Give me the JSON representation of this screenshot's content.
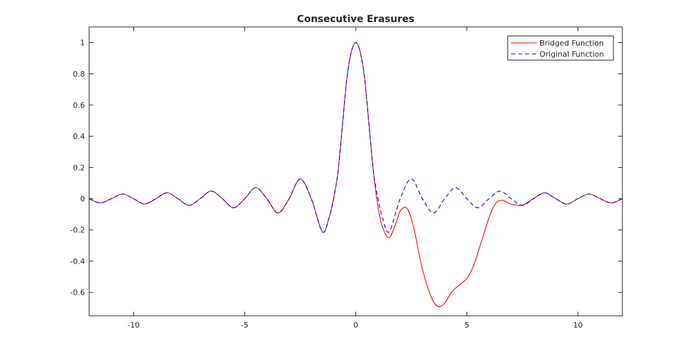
{
  "chart_data": {
    "type": "line",
    "title": "Consecutive Erasures",
    "xlabel": "",
    "ylabel": "",
    "xlim": [
      -12,
      12
    ],
    "ylim": [
      -0.75,
      1.1
    ],
    "x_ticks": [
      -10,
      -5,
      0,
      5,
      10
    ],
    "x_tick_labels": [
      "-10",
      "-5",
      "0",
      "5",
      "10"
    ],
    "y_ticks": [
      -0.6,
      -0.4,
      -0.2,
      0,
      0.2,
      0.4,
      0.6,
      0.8,
      1
    ],
    "y_tick_labels": [
      "-0.6",
      "-0.4",
      "-0.2",
      "0",
      "0.2",
      "0.4",
      "0.6",
      "0.8",
      "1"
    ],
    "grid": false,
    "legend_position": "top-right",
    "series": [
      {
        "name": "Bridged Function",
        "color": "#ff0000",
        "style": "solid",
        "x": [
          -12,
          -11.5,
          -11,
          -10.5,
          -10,
          -9.5,
          -9,
          -8.5,
          -8,
          -7.5,
          -7,
          -6.5,
          -6,
          -5.5,
          -5,
          -4.5,
          -4,
          -3.5,
          -3,
          -2.5,
          -2,
          -1.5,
          -1.2,
          -1,
          -0.8,
          -0.6,
          -0.4,
          -0.2,
          0,
          0.2,
          0.4,
          0.6,
          0.8,
          1,
          1.2,
          1.5,
          1.8,
          2,
          2.3,
          2.6,
          3,
          3.4,
          3.7,
          4,
          4.3,
          4.6,
          5,
          5.3,
          5.6,
          6,
          6.3,
          6.6,
          7,
          7.5,
          8,
          8.5,
          9,
          9.5,
          10,
          10.5,
          11,
          11.5,
          12
        ],
        "y": [
          0,
          -0.027,
          0,
          0.03,
          0,
          -0.034,
          0,
          0.038,
          0,
          -0.042,
          0,
          0.049,
          0,
          -0.058,
          0,
          0.071,
          0,
          -0.091,
          0,
          0.127,
          0,
          -0.212,
          -0.12,
          0,
          0.17,
          0.47,
          0.77,
          0.94,
          1.0,
          0.94,
          0.77,
          0.47,
          0.17,
          -0.05,
          -0.18,
          -0.25,
          -0.16,
          -0.08,
          -0.06,
          -0.18,
          -0.45,
          -0.63,
          -0.69,
          -0.67,
          -0.6,
          -0.56,
          -0.51,
          -0.43,
          -0.3,
          -0.12,
          -0.03,
          -0.01,
          -0.035,
          -0.04,
          0,
          0.038,
          0,
          -0.034,
          0,
          0.03,
          0,
          -0.027,
          0
        ]
      },
      {
        "name": "Original Function",
        "color": "#0000ff",
        "style": "dashed",
        "x": [
          -12,
          -11.5,
          -11,
          -10.5,
          -10,
          -9.5,
          -9,
          -8.5,
          -8,
          -7.5,
          -7,
          -6.5,
          -6,
          -5.5,
          -5,
          -4.5,
          -4,
          -3.5,
          -3,
          -2.5,
          -2,
          -1.5,
          -1.2,
          -1,
          -0.8,
          -0.6,
          -0.4,
          -0.2,
          0,
          0.2,
          0.4,
          0.6,
          0.8,
          1,
          1.2,
          1.5,
          2,
          2.5,
          3,
          3.5,
          4,
          4.5,
          5,
          5.5,
          6,
          6.5,
          7,
          7.5,
          8,
          8.5,
          9,
          9.5,
          10,
          10.5,
          11,
          11.5,
          12
        ],
        "y": [
          0,
          -0.027,
          0,
          0.03,
          0,
          -0.034,
          0,
          0.038,
          0,
          -0.042,
          0,
          0.049,
          0,
          -0.058,
          0,
          0.071,
          0,
          -0.091,
          0,
          0.127,
          0,
          -0.212,
          -0.12,
          0,
          0.17,
          0.47,
          0.77,
          0.94,
          1.0,
          0.94,
          0.77,
          0.47,
          0.17,
          0,
          -0.12,
          -0.212,
          0,
          0.127,
          0,
          -0.091,
          0,
          0.071,
          0,
          -0.058,
          0,
          0.049,
          0,
          -0.042,
          0,
          0.038,
          0,
          -0.034,
          0,
          0.03,
          0,
          -0.027,
          0
        ]
      }
    ]
  }
}
